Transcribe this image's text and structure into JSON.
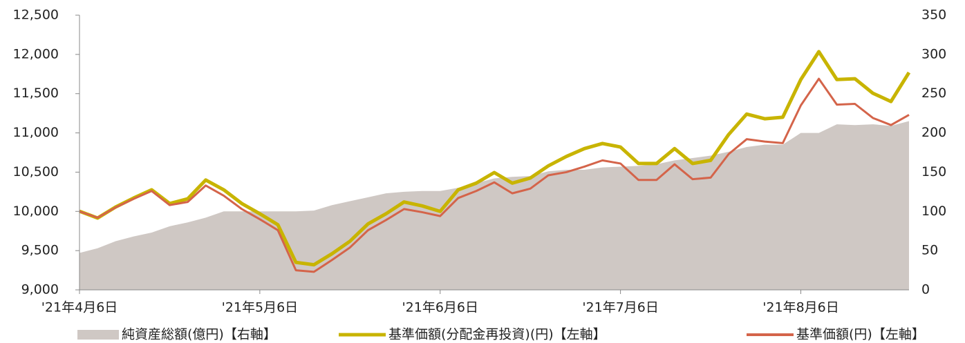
{
  "chart_data": {
    "type": "line",
    "categories": [
      "'21年4月6日",
      null,
      null,
      null,
      null,
      null,
      null,
      null,
      null,
      null,
      "'21年5月6日",
      null,
      null,
      null,
      null,
      null,
      null,
      null,
      null,
      null,
      "'21年6月6日",
      null,
      null,
      null,
      null,
      null,
      null,
      null,
      null,
      null,
      "'21年7月6日",
      null,
      null,
      null,
      null,
      null,
      null,
      null,
      null,
      null,
      "'21年8月6日",
      null,
      null,
      null,
      null,
      null,
      null
    ],
    "series": [
      {
        "name": "純資産総額(億円)【右軸】",
        "color": "#cfc8c4",
        "kind": "area",
        "axis": "y2",
        "values": [
          47,
          53,
          62,
          68,
          73,
          81,
          86,
          92,
          100,
          100,
          100,
          100,
          100,
          101,
          108,
          113,
          118,
          123,
          125,
          126,
          126,
          130,
          136,
          142,
          144,
          145,
          151,
          153,
          153,
          156,
          157,
          158,
          160,
          165,
          168,
          171,
          176,
          182,
          185,
          185,
          200,
          200,
          211,
          210,
          211,
          209,
          215
        ]
      },
      {
        "name": "基準価額(分配金再投資)(円)【左軸】",
        "color": "#c8b400",
        "kind": "line",
        "values": [
          10002,
          9915,
          10055,
          10170,
          10275,
          10100,
          10160,
          10400,
          10275,
          10100,
          9970,
          9830,
          9350,
          9320,
          9460,
          9620,
          9840,
          9970,
          10120,
          10070,
          10000,
          10275,
          10360,
          10495,
          10360,
          10425,
          10580,
          10700,
          10800,
          10865,
          10820,
          10610,
          10610,
          10800,
          10610,
          10650,
          10980,
          11240,
          11180,
          11200,
          11680,
          12035,
          11680,
          11690,
          11505,
          11400,
          11770
        ]
      },
      {
        "name": "基準価額(円)【左軸】",
        "color": "#d4644a",
        "kind": "line",
        "values": [
          10000,
          9920,
          10050,
          10160,
          10260,
          10080,
          10120,
          10330,
          10200,
          10030,
          9900,
          9760,
          9250,
          9230,
          9380,
          9540,
          9760,
          9890,
          10030,
          9990,
          9940,
          10170,
          10260,
          10370,
          10230,
          10290,
          10460,
          10500,
          10570,
          10650,
          10610,
          10400,
          10400,
          10600,
          10410,
          10430,
          10730,
          10920,
          10890,
          10870,
          11350,
          11690,
          11360,
          11370,
          11190,
          11100,
          11230
        ]
      }
    ],
    "ylim": [
      9000,
      12500
    ],
    "yticks": [
      {
        "value": 9000,
        "label": "9,000"
      },
      {
        "value": 9500,
        "label": "9,500"
      },
      {
        "value": 10000,
        "label": "10,000"
      },
      {
        "value": 10500,
        "label": "10,500"
      },
      {
        "value": 11000,
        "label": "11,000"
      },
      {
        "value": 11500,
        "label": "11,500"
      },
      {
        "value": 12000,
        "label": "12,000"
      },
      {
        "value": 12500,
        "label": "12,500"
      }
    ],
    "y2lim": [
      0,
      350
    ],
    "y2ticks": [
      0,
      50,
      100,
      150,
      200,
      250,
      300,
      350
    ],
    "legend": "bottom"
  }
}
